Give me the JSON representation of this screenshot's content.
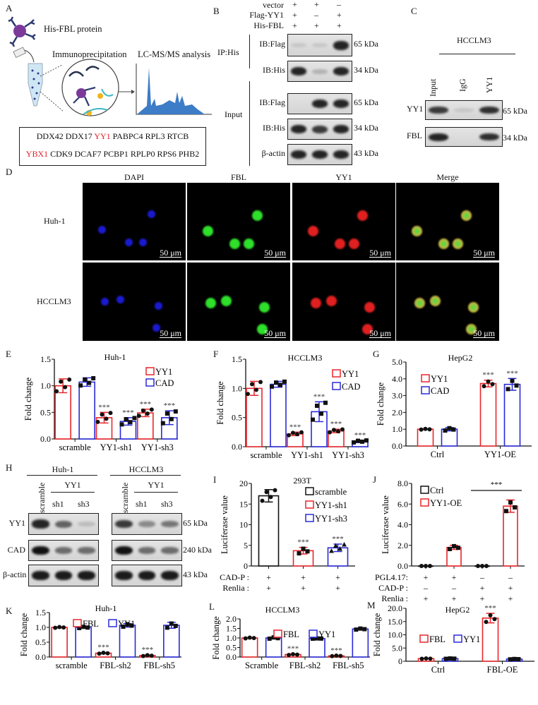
{
  "panel_letters": {
    "A": "A",
    "B": "B",
    "C": "C",
    "D": "D",
    "E": "E",
    "F": "F",
    "G": "G",
    "H": "H",
    "I": "I",
    "J": "J",
    "K": "K",
    "L": "L",
    "M": "M"
  },
  "panel_a": {
    "protein_label": "His-FBL protein",
    "ip_label": "Immunoprecipitation",
    "ms_label": "LC-MS/MS analysis",
    "hits_line1": [
      {
        "t": "DDX42 DDX17 ",
        "c": "#111"
      },
      {
        "t": "YY1",
        "c": "#e0202a"
      },
      {
        "t": "  PABPC4 RPL3 RTCB",
        "c": "#111"
      }
    ],
    "hits_line1_text": [
      "DDX42 DDX17 ",
      "YY1",
      "  PABPC4 RPL3 RTCB"
    ],
    "hits_line2_text": [
      "YBX1",
      " CDK9 DCAF7 PCBP1 RPLP0 RPS6 PHB2"
    ],
    "highlight_color": "#e0202a"
  },
  "panel_b": {
    "conditions": [
      {
        "label": "vector",
        "marks": [
          "+",
          "+",
          "–"
        ]
      },
      {
        "label": "Flag-YY1",
        "marks": [
          "+",
          "–",
          "+"
        ]
      },
      {
        "label": "His-FBL",
        "marks": [
          "+",
          "+",
          "+"
        ]
      }
    ],
    "groups": [
      "IP:His",
      "Input"
    ],
    "blots": [
      {
        "label": "IB:Flag",
        "kda": "65 kDa"
      },
      {
        "label": "IB:His",
        "kda": "34 kDa"
      },
      {
        "label": "IB:Flag",
        "kda": "65 kDa"
      },
      {
        "label": "IB:His",
        "kda": "34 kDa"
      },
      {
        "label": "β-actin",
        "kda": "43 kDa"
      }
    ]
  },
  "panel_c": {
    "title": "HCCLM3",
    "columns": [
      "Input",
      "IgG",
      "YY1"
    ],
    "blots": [
      {
        "label": "YY1",
        "kda": "65 kDa"
      },
      {
        "label": "FBL",
        "kda": "34 kDa"
      }
    ]
  },
  "panel_d": {
    "columns": [
      "DAPI",
      "FBL",
      "YY1",
      "Merge"
    ],
    "rows": [
      "Huh-1",
      "HCCLM3"
    ],
    "scale_bar": "50 μm"
  },
  "panel_h": {
    "cell_lines": [
      "Huh-1",
      "HCCLM3"
    ],
    "scramble": "scramble",
    "group": "YY1",
    "lanes": [
      "sh1",
      "sh3"
    ],
    "blots": [
      {
        "label": "YY1",
        "kda": "65 kDa"
      },
      {
        "label": "CAD",
        "kda": "240 kDa"
      },
      {
        "label": "β-actin",
        "kda": "43 kDa"
      }
    ]
  },
  "chart_data": [
    {
      "id": "E",
      "type": "bar",
      "title": "Huh-1",
      "ylabel": "Fold change",
      "xlabel": "",
      "ylim": [
        0,
        1.5
      ],
      "yticks": [
        "0.0",
        "0.5",
        "1.0",
        "1.5"
      ],
      "ytick_values": [
        0,
        0.5,
        1.0,
        1.5
      ],
      "categories": [
        "scramble",
        "YY1-sh1",
        "YY1-sh3"
      ],
      "legend": "top-right",
      "series": [
        {
          "name": "YY1",
          "color": "#e8262b",
          "values": [
            1.0,
            0.4,
            0.49
          ],
          "errors": [
            0.13,
            0.1,
            0.07
          ],
          "n": 4,
          "marker": "circle",
          "sig": [
            "",
            "***",
            "***"
          ]
        },
        {
          "name": "CAD",
          "color": "#2a2ad8",
          "values": [
            1.07,
            0.33,
            0.4
          ],
          "errors": [
            0.08,
            0.07,
            0.13
          ],
          "n": 4,
          "marker": "square",
          "sig": [
            "",
            "***",
            "***"
          ]
        }
      ]
    },
    {
      "id": "F",
      "type": "bar",
      "title": "HCCLM3",
      "ylabel": "Fold  change",
      "xlabel": "",
      "ylim": [
        0,
        1.5
      ],
      "yticks": [
        "0.0",
        "0.5",
        "1.0",
        "1.5"
      ],
      "ytick_values": [
        0,
        0.5,
        1.0,
        1.5
      ],
      "categories": [
        "scramble",
        "YY1-sh1",
        "YY1-sh3"
      ],
      "legend": "top-right",
      "series": [
        {
          "name": "YY1",
          "color": "#e8262b",
          "values": [
            1.0,
            0.22,
            0.27
          ],
          "errors": [
            0.12,
            0.03,
            0.03
          ],
          "n": 4,
          "marker": "circle",
          "sig": [
            "",
            "***",
            "***"
          ]
        },
        {
          "name": "CAD",
          "color": "#2a2ad8",
          "values": [
            1.07,
            0.6,
            0.09
          ],
          "errors": [
            0.05,
            0.17,
            0.02
          ],
          "n": 4,
          "marker": "square",
          "sig": [
            "",
            "***",
            "***"
          ]
        }
      ]
    },
    {
      "id": "G",
      "type": "bar",
      "title": "HepG2",
      "ylabel": "Fold  change",
      "xlabel": "",
      "ylim": [
        0,
        5
      ],
      "yticks": [
        "0.0",
        "1.0",
        "2.0",
        "3.0",
        "4.0",
        "5.0"
      ],
      "ytick_values": [
        0,
        1,
        2,
        3,
        4,
        5
      ],
      "categories": [
        "Ctrl",
        "YY1-OE"
      ],
      "legend": "top-left",
      "series": [
        {
          "name": "YY1",
          "color": "#e8262b",
          "values": [
            1.0,
            3.72
          ],
          "errors": [
            0.03,
            0.2
          ],
          "n": 3,
          "marker": "circle",
          "sig": [
            "",
            "***"
          ]
        },
        {
          "name": "CAD",
          "color": "#2a2ad8",
          "values": [
            1.0,
            3.67
          ],
          "errors": [
            0.1,
            0.35
          ],
          "n": 3,
          "marker": "square",
          "sig": [
            "",
            "***"
          ]
        }
      ]
    },
    {
      "id": "I",
      "type": "bar",
      "title": "293T",
      "ylabel": "Luciferase value",
      "xlabel": "",
      "ylim": [
        0,
        20
      ],
      "yticks": [
        "0",
        "5",
        "10",
        "15",
        "20"
      ],
      "ytick_values": [
        0,
        5,
        10,
        15,
        20
      ],
      "categories": [
        "scramble",
        "YY1-sh1",
        "YY1-sh3"
      ],
      "legend": "top-right",
      "single_bar_groups": true,
      "series": [
        {
          "name": "scramble",
          "color": "#111111",
          "values": [
            17.0,
            null,
            null
          ],
          "errors": [
            1.5,
            0,
            0
          ],
          "n": 4,
          "marker": "circle",
          "sig": [
            "",
            "",
            ""
          ]
        },
        {
          "name": "YY1-sh1",
          "color": "#e8262b",
          "values": [
            null,
            3.7,
            null
          ],
          "errors": [
            0,
            0.8,
            0
          ],
          "n": 3,
          "marker": "square",
          "sig": [
            "",
            "***",
            ""
          ]
        },
        {
          "name": "YY1-sh3",
          "color": "#2a2ad8",
          "values": [
            null,
            null,
            4.4
          ],
          "errors": [
            0,
            0,
            0.9
          ],
          "n": 4,
          "marker": "triangle",
          "sig": [
            "",
            "",
            "***"
          ]
        }
      ],
      "condition_rows": [
        {
          "label": "CAD-P :",
          "marks": [
            "+",
            "+",
            "+"
          ]
        },
        {
          "label": "Renlia :",
          "marks": [
            "+",
            "+",
            "+"
          ]
        }
      ]
    },
    {
      "id": "J",
      "type": "bar",
      "title": "",
      "ylabel": "Luciferase value",
      "xlabel": "",
      "ylim": [
        0,
        8
      ],
      "yticks": [
        "0.0",
        "2.0",
        "4.0",
        "6.0",
        "8.0"
      ],
      "ytick_values": [
        0,
        2,
        4,
        6,
        8
      ],
      "categories": [
        "1",
        "2",
        "3",
        "4"
      ],
      "legend": "top-left",
      "single_bar_groups": true,
      "series": [
        {
          "name": "Ctrl",
          "color": "#111111",
          "values": [
            0,
            null,
            0,
            null
          ],
          "errors": [
            0,
            0,
            0,
            0
          ],
          "n": 3,
          "marker": "circle",
          "sig": [
            "",
            "",
            "",
            ""
          ]
        },
        {
          "name": "YY1-OE",
          "color": "#e8262b",
          "values": [
            null,
            1.8,
            null,
            5.8
          ],
          "errors": [
            0,
            0.2,
            0,
            0.6
          ],
          "n": 3,
          "marker": "square",
          "sig": [
            "",
            "",
            "",
            ""
          ]
        }
      ],
      "bracket": {
        "from": 2,
        "to": 3,
        "label": "***"
      },
      "condition_rows": [
        {
          "label": "PGL4.17:",
          "marks": [
            "+",
            "+",
            "–",
            "–"
          ]
        },
        {
          "label": "CAD-P :",
          "marks": [
            "–",
            "–",
            "+",
            "+"
          ]
        },
        {
          "label": "Renlia  :",
          "marks": [
            "+",
            "+",
            "+",
            "+"
          ]
        }
      ]
    },
    {
      "id": "K",
      "type": "bar",
      "title": "Huh-1",
      "ylabel": "Fold  change",
      "xlabel": "",
      "ylim": [
        0,
        1.5
      ],
      "yticks": [
        "0.0",
        "0.5",
        "1.0",
        "1.5"
      ],
      "ytick_values": [
        0,
        0.5,
        1.0,
        1.5
      ],
      "categories": [
        "scramble",
        "FBL-sh2",
        "FBL-sh5"
      ],
      "legend": "top",
      "series": [
        {
          "name": "FBL",
          "color": "#e8262b",
          "values": [
            1.0,
            0.13,
            0.05
          ],
          "errors": [
            0.02,
            0.02,
            0.02
          ],
          "n": 3,
          "marker": "circle",
          "sig": [
            "",
            "***",
            "***"
          ]
        },
        {
          "name": "YY1",
          "color": "#2a2ad8",
          "values": [
            1.0,
            1.07,
            1.07
          ],
          "errors": [
            0.03,
            0.06,
            0.1
          ],
          "n": 3,
          "marker": "square",
          "sig": [
            "",
            "",
            ""
          ]
        }
      ]
    },
    {
      "id": "L",
      "type": "bar",
      "title": "HCCLM3",
      "ylabel": "Fold  change",
      "xlabel": "",
      "ylim": [
        0,
        2
      ],
      "yticks": [
        "0.0",
        "0.5",
        "1.0",
        "1.5",
        "2.0"
      ],
      "ytick_values": [
        0,
        0.5,
        1,
        1.5,
        2
      ],
      "categories": [
        "Scramble",
        "FBL-sh2",
        "FBL-sh5"
      ],
      "legend": "top",
      "series": [
        {
          "name": "FBL",
          "color": "#e8262b",
          "values": [
            1.0,
            0.13,
            0.06
          ],
          "errors": [
            0.03,
            0.03,
            0.02
          ],
          "n": 3,
          "marker": "circle",
          "sig": [
            "",
            "***",
            "***"
          ]
        },
        {
          "name": "YY1",
          "color": "#2a2ad8",
          "values": [
            1.0,
            0.97,
            1.47
          ],
          "errors": [
            0.05,
            0.01,
            0.04
          ],
          "n": 3,
          "marker": "square",
          "sig": [
            "",
            "",
            ""
          ]
        }
      ]
    },
    {
      "id": "M",
      "type": "bar",
      "title": "HepG2",
      "ylabel": "Fold  change",
      "xlabel": "",
      "ylim": [
        0,
        20
      ],
      "yticks": [
        "0",
        "5.0",
        "10.0",
        "15.0",
        "20.0"
      ],
      "ytick_values": [
        0,
        5,
        10,
        15,
        20
      ],
      "categories": [
        "Ctrl",
        "FBL-OE"
      ],
      "legend": "top-left",
      "series": [
        {
          "name": "FBL",
          "color": "#e8262b",
          "values": [
            1.0,
            16.3
          ],
          "errors": [
            0.1,
            1.8
          ],
          "n": 3,
          "marker": "circle",
          "sig": [
            "",
            "***"
          ]
        },
        {
          "name": "YY1",
          "color": "#2a2ad8",
          "values": [
            1.0,
            0.8
          ],
          "errors": [
            0.1,
            0.1
          ],
          "n": 3,
          "marker": "square",
          "sig": [
            "",
            ""
          ]
        }
      ]
    }
  ]
}
